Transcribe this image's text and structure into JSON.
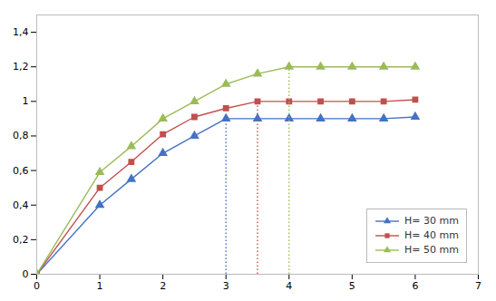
{
  "chart_data": {
    "type": "line",
    "x": [
      0,
      1,
      1.5,
      2,
      2.5,
      3,
      3.5,
      4,
      4.5,
      5,
      5.5,
      6
    ],
    "series": [
      {
        "name": "H= 30 mm",
        "color": "#4472C4",
        "marker": "triangle",
        "values": [
          0,
          0.4,
          0.55,
          0.7,
          0.8,
          0.9,
          0.9,
          0.9,
          0.9,
          0.9,
          0.9,
          0.91
        ],
        "vline_x": 3.0,
        "vline_ymax": 0.9
      },
      {
        "name": "H= 40 mm",
        "color": "#C0504D",
        "marker": "square",
        "values": [
          0,
          0.5,
          0.65,
          0.81,
          0.91,
          0.96,
          1.0,
          1.0,
          1.0,
          1.0,
          1.0,
          1.01
        ],
        "vline_x": 3.5,
        "vline_ymax": 1.0
      },
      {
        "name": "H= 50 mm",
        "color": "#9BBB59",
        "marker": "triangle",
        "values": [
          0,
          0.59,
          0.74,
          0.9,
          1.0,
          1.1,
          1.16,
          1.2,
          1.2,
          1.2,
          1.2,
          1.2
        ],
        "vline_x": 4.0,
        "vline_ymax": 1.2
      }
    ],
    "xlim": [
      0,
      7
    ],
    "ylim": [
      0,
      1.5
    ],
    "xticks": [
      0,
      1,
      2,
      3,
      4,
      5,
      6,
      7
    ],
    "yticks": [
      0,
      {
        "value": 0.2,
        "label": "0,2"
      },
      {
        "value": 0.4,
        "label": "0,4"
      },
      {
        "value": 0.6,
        "label": "0,6"
      },
      {
        "value": 0.8,
        "label": "0,8"
      },
      1,
      {
        "value": 1.2,
        "label": "1,2"
      },
      {
        "value": 1.4,
        "label": "1,4"
      }
    ],
    "legend": "lower right",
    "grid": false
  }
}
